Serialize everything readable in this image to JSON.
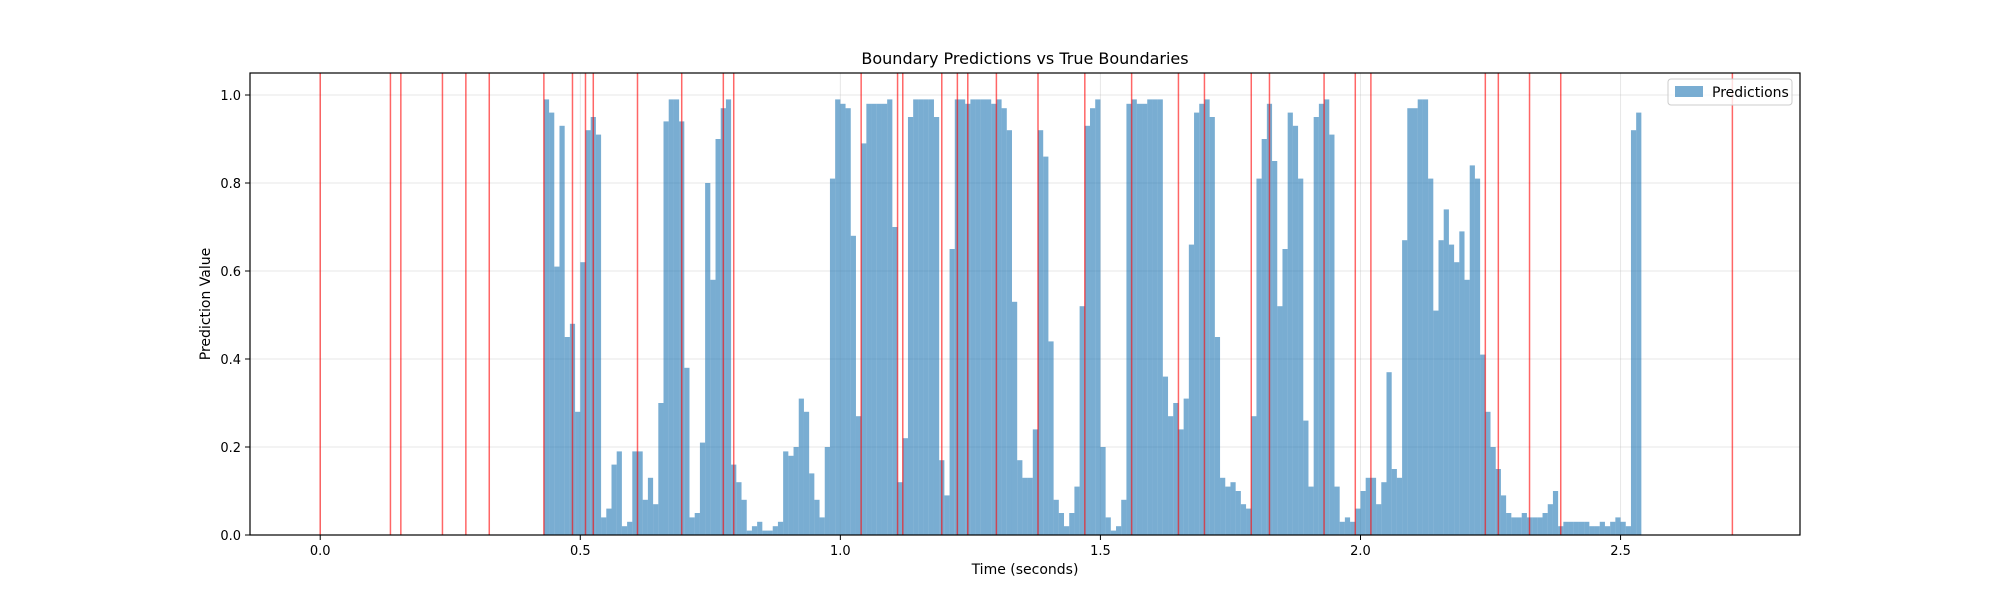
{
  "chart_data": {
    "type": "bar",
    "title": "Boundary Predictions vs True Boundaries",
    "xlabel": "Time (seconds)",
    "ylabel": "Prediction Value",
    "xlim": [
      -0.135,
      2.845
    ],
    "ylim": [
      0.0,
      1.05
    ],
    "x_ticks": [
      0.0,
      0.5,
      1.0,
      1.5,
      2.0,
      2.5
    ],
    "x_tick_labels": [
      "0.0",
      "0.5",
      "1.0",
      "1.5",
      "2.0",
      "2.5"
    ],
    "y_ticks": [
      0.0,
      0.2,
      0.4,
      0.6,
      0.8,
      1.0
    ],
    "y_tick_labels": [
      "0.0",
      "0.2",
      "0.4",
      "0.6",
      "0.8",
      "1.0"
    ],
    "grid": true,
    "legend_position": "top-right",
    "bar_width": 0.01,
    "series": [
      {
        "name": "Predictions",
        "color": "#1f77b4",
        "opacity": 0.6,
        "x_start": 0.43,
        "x_step": 0.01,
        "values": [
          0.99,
          0.96,
          0.61,
          0.93,
          0.45,
          0.48,
          0.28,
          0.62,
          0.92,
          0.95,
          0.91,
          0.04,
          0.06,
          0.16,
          0.19,
          0.02,
          0.03,
          0.19,
          0.19,
          0.08,
          0.13,
          0.07,
          0.3,
          0.94,
          0.99,
          0.99,
          0.94,
          0.38,
          0.04,
          0.05,
          0.21,
          0.8,
          0.58,
          0.9,
          0.97,
          0.99,
          0.16,
          0.12,
          0.08,
          0.01,
          0.02,
          0.03,
          0.01,
          0.01,
          0.02,
          0.03,
          0.19,
          0.18,
          0.2,
          0.31,
          0.28,
          0.14,
          0.08,
          0.04,
          0.2,
          0.81,
          0.99,
          0.98,
          0.97,
          0.68,
          0.27,
          0.89,
          0.98,
          0.98,
          0.98,
          0.98,
          0.99,
          0.7,
          0.12,
          0.22,
          0.95,
          0.99,
          0.99,
          0.99,
          0.99,
          0.95,
          0.17,
          0.09,
          0.65,
          0.99,
          0.99,
          0.98,
          0.99,
          0.99,
          0.99,
          0.99,
          0.98,
          0.99,
          0.97,
          0.92,
          0.53,
          0.17,
          0.13,
          0.13,
          0.24,
          0.92,
          0.86,
          0.44,
          0.08,
          0.05,
          0.02,
          0.05,
          0.11,
          0.52,
          0.93,
          0.97,
          0.99,
          0.2,
          0.04,
          0.01,
          0.02,
          0.08,
          0.98,
          0.99,
          0.98,
          0.98,
          0.99,
          0.99,
          0.99,
          0.36,
          0.27,
          0.3,
          0.24,
          0.31,
          0.66,
          0.96,
          0.98,
          0.99,
          0.95,
          0.45,
          0.13,
          0.11,
          0.12,
          0.1,
          0.07,
          0.06,
          0.27,
          0.81,
          0.9,
          0.98,
          0.85,
          0.52,
          0.65,
          0.96,
          0.93,
          0.81,
          0.26,
          0.11,
          0.95,
          0.98,
          0.99,
          0.91,
          0.11,
          0.03,
          0.04,
          0.03,
          0.06,
          0.1,
          0.13,
          0.13,
          0.07,
          0.12,
          0.37,
          0.15,
          0.13,
          0.67,
          0.97,
          0.97,
          0.99,
          0.99,
          0.81,
          0.51,
          0.67,
          0.74,
          0.66,
          0.62,
          0.69,
          0.58,
          0.84,
          0.81,
          0.41,
          0.28,
          0.2,
          0.15,
          0.09,
          0.05,
          0.04,
          0.04,
          0.05,
          0.04,
          0.04,
          0.04,
          0.05,
          0.07,
          0.1,
          0.02,
          0.03,
          0.03,
          0.03,
          0.03,
          0.03,
          0.02,
          0.02,
          0.03,
          0.02,
          0.03,
          0.04,
          0.03,
          0.02,
          0.92,
          0.96
        ]
      }
    ],
    "true_boundaries": {
      "color": "#ff0000",
      "opacity": 0.6,
      "x": [
        0.0,
        0.135,
        0.155,
        0.235,
        0.28,
        0.325,
        0.43,
        0.485,
        0.51,
        0.525,
        0.61,
        0.695,
        0.775,
        0.795,
        1.04,
        1.11,
        1.12,
        1.195,
        1.225,
        1.245,
        1.3,
        1.38,
        1.47,
        1.56,
        1.65,
        1.7,
        1.79,
        1.825,
        1.93,
        1.99,
        2.02,
        2.24,
        2.265,
        2.325,
        2.385,
        2.715
      ]
    }
  }
}
